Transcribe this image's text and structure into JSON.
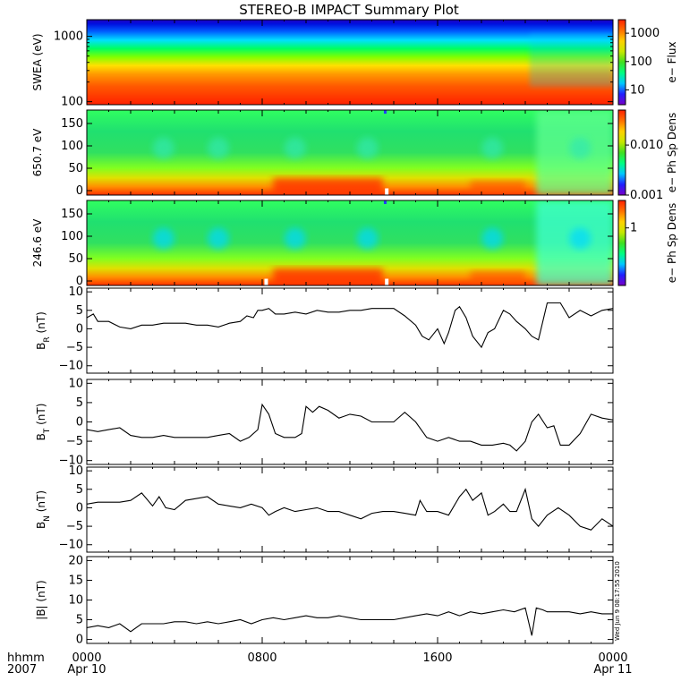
{
  "title": "STEREO-B IMPACT Summary Plot",
  "timestamp": "Wed Jun  9 08:17:55 2010",
  "x_axis": {
    "row1_label": "hhmm",
    "row2_label": "2007",
    "ticks": [
      {
        "hour": 0,
        "label": "0000",
        "sublabel": "Apr 10"
      },
      {
        "hour": 8,
        "label": "0800",
        "sublabel": ""
      },
      {
        "hour": 16,
        "label": "1600",
        "sublabel": ""
      },
      {
        "hour": 24,
        "label": "0000",
        "sublabel": "Apr 11"
      }
    ]
  },
  "colors": {
    "colormap": [
      "#7a00c8",
      "#2020ff",
      "#00c8ff",
      "#00ff80",
      "#40e020",
      "#c8e800",
      "#ffd000",
      "#ff7000",
      "#ff2000"
    ],
    "line": "#000000",
    "background": "#ffffff"
  },
  "chart_data": [
    {
      "type": "heatmap",
      "name": "swea",
      "ylabel": "SWEA (eV)",
      "yscale": "log",
      "ylim": [
        90,
        1800
      ],
      "yticks": [
        {
          "value": 100,
          "label": "100"
        },
        {
          "value": 1000,
          "label": "1000"
        }
      ],
      "colorbar": {
        "label": "e− Flux",
        "scale": "log",
        "range": [
          3,
          3000
        ],
        "ticks": [
          {
            "value": 10,
            "label": "10"
          },
          {
            "value": 100,
            "label": "100"
          },
          {
            "value": 1000,
            "label": "1000"
          }
        ]
      }
    },
    {
      "type": "heatmap",
      "name": "pad650",
      "ylabel": "650.7 eV",
      "yscale": "linear",
      "ylim": [
        -10,
        180
      ],
      "yticks": [
        {
          "value": 0,
          "label": "0"
        },
        {
          "value": 50,
          "label": "50"
        },
        {
          "value": 100,
          "label": "100"
        },
        {
          "value": 150,
          "label": "150"
        }
      ],
      "colorbar": {
        "label": "e− Ph Sp Dens",
        "scale": "log",
        "range": [
          0.001,
          0.05
        ],
        "ticks": [
          {
            "value": 0.001,
            "label": "0.001"
          },
          {
            "value": 0.01,
            "label": "0.010"
          }
        ]
      }
    },
    {
      "type": "heatmap",
      "name": "pad246",
      "ylabel": "246.6 eV",
      "yscale": "linear",
      "ylim": [
        -10,
        180
      ],
      "yticks": [
        {
          "value": 0,
          "label": "0"
        },
        {
          "value": 50,
          "label": "50"
        },
        {
          "value": 100,
          "label": "100"
        },
        {
          "value": 150,
          "label": "150"
        }
      ],
      "colorbar": {
        "label": "e− Ph Sp Dens",
        "scale": "log",
        "range": [
          0.1,
          3
        ],
        "ticks": [
          {
            "value": 1,
            "label": "1"
          }
        ]
      }
    },
    {
      "type": "line",
      "name": "BR",
      "ylabel_main": "B",
      "ylabel_sub": "R",
      "ylabel_unit": " (nT)",
      "ylim": [
        -12,
        11
      ],
      "yticks": [
        {
          "value": -10,
          "label": "−10"
        },
        {
          "value": -5,
          "label": "−5"
        },
        {
          "value": 0,
          "label": "0"
        },
        {
          "value": 5,
          "label": "5"
        },
        {
          "value": 10,
          "label": "10"
        }
      ],
      "x": [
        0,
        0.3,
        0.5,
        1,
        1.5,
        2,
        2.5,
        3,
        3.5,
        4,
        4.5,
        5,
        5.5,
        6,
        6.5,
        7,
        7.3,
        7.6,
        7.8,
        8,
        8.3,
        8.6,
        9,
        9.5,
        10,
        10.5,
        11,
        11.5,
        12,
        12.5,
        13,
        13.5,
        14,
        14.5,
        15,
        15.3,
        15.6,
        16,
        16.3,
        16.5,
        16.8,
        17,
        17.3,
        17.6,
        18,
        18.3,
        18.6,
        19,
        19.3,
        19.6,
        20,
        20.3,
        20.6,
        21,
        21.3,
        21.6,
        22,
        22.5,
        23,
        23.5,
        24
      ],
      "y": [
        3,
        4,
        2,
        2,
        0.5,
        0,
        1,
        1,
        1.5,
        1.5,
        1.5,
        1,
        1,
        0.5,
        1.5,
        2,
        3.5,
        3,
        5,
        5,
        5.5,
        4,
        4,
        4.5,
        4,
        5,
        4.5,
        4.5,
        5,
        5,
        5.5,
        5.5,
        5.5,
        3.5,
        1,
        -2,
        -3,
        0,
        -4,
        -1,
        5,
        6,
        3,
        -2,
        -5,
        -1,
        0,
        5,
        4,
        2,
        0,
        -2,
        -3,
        7,
        7,
        7,
        3,
        5,
        3.5,
        5,
        5.5
      ]
    },
    {
      "type": "line",
      "name": "BT",
      "ylabel_main": "B",
      "ylabel_sub": "T",
      "ylabel_unit": " (nT)",
      "ylim": [
        -11,
        11
      ],
      "yticks": [
        {
          "value": -10,
          "label": "−10"
        },
        {
          "value": -5,
          "label": "−5"
        },
        {
          "value": 0,
          "label": "0"
        },
        {
          "value": 5,
          "label": "5"
        },
        {
          "value": 10,
          "label": "10"
        }
      ],
      "x": [
        0,
        0.5,
        1,
        1.5,
        2,
        2.5,
        3,
        3.5,
        4,
        4.5,
        5,
        5.5,
        6,
        6.5,
        7,
        7.4,
        7.8,
        8,
        8.3,
        8.6,
        9,
        9.5,
        9.8,
        10,
        10.3,
        10.6,
        11,
        11.5,
        12,
        12.5,
        13,
        13.5,
        14,
        14.5,
        15,
        15.5,
        16,
        16.5,
        17,
        17.5,
        18,
        18.5,
        19,
        19.3,
        19.6,
        20,
        20.3,
        20.6,
        21,
        21.3,
        21.6,
        22,
        22.5,
        23,
        23.5,
        24
      ],
      "y": [
        -2,
        -2.5,
        -2,
        -1.5,
        -3.5,
        -4,
        -4,
        -3.5,
        -4,
        -4,
        -4,
        -4,
        -3.5,
        -3,
        -5,
        -4,
        -2,
        4.5,
        2,
        -3,
        -4,
        -4,
        -3,
        4,
        2.5,
        4,
        3,
        1,
        2,
        1.5,
        0,
        0,
        0,
        2.5,
        0,
        -4,
        -5,
        -4,
        -5,
        -5,
        -6,
        -6,
        -5.5,
        -6,
        -7.5,
        -5,
        0,
        2,
        -1.5,
        -1,
        -6,
        -6,
        -3,
        2,
        1,
        0.5
      ]
    },
    {
      "type": "line",
      "name": "BN",
      "ylabel_main": "B",
      "ylabel_sub": "N",
      "ylabel_unit": " (nT)",
      "ylim": [
        -12,
        11
      ],
      "yticks": [
        {
          "value": -10,
          "label": "−10"
        },
        {
          "value": -5,
          "label": "−5"
        },
        {
          "value": 0,
          "label": "0"
        },
        {
          "value": 5,
          "label": "5"
        },
        {
          "value": 10,
          "label": "10"
        }
      ],
      "x": [
        0,
        0.5,
        1,
        1.5,
        2,
        2.5,
        3,
        3.3,
        3.6,
        4,
        4.5,
        5,
        5.5,
        6,
        6.5,
        7,
        7.5,
        8,
        8.3,
        8.6,
        9,
        9.5,
        10,
        10.5,
        11,
        11.5,
        12,
        12.5,
        13,
        13.5,
        14,
        14.5,
        15,
        15.2,
        15.5,
        16,
        16.5,
        17,
        17.3,
        17.6,
        18,
        18.3,
        18.6,
        19,
        19.3,
        19.6,
        20,
        20.3,
        20.6,
        21,
        21.5,
        22,
        22.5,
        23,
        23.5,
        24
      ],
      "y": [
        1,
        1.5,
        1.5,
        1.5,
        2,
        4,
        0.5,
        3,
        0,
        -0.5,
        2,
        2.5,
        3,
        1,
        0.5,
        0,
        1,
        0,
        -2,
        -1,
        0,
        -1,
        -0.5,
        0,
        -1,
        -1,
        -2,
        -3,
        -1.5,
        -1,
        -1,
        -1.5,
        -2,
        2,
        -1,
        -1,
        -2,
        3,
        5,
        2,
        4,
        -2,
        -1,
        1,
        -1,
        -1,
        5,
        -3,
        -5,
        -2,
        0,
        -2,
        -5,
        -6,
        -3,
        -5
      ]
    },
    {
      "type": "line",
      "name": "Bmag",
      "ylabel_main": "|B|",
      "ylabel_sub": "",
      "ylabel_unit": " (nT)",
      "ylim": [
        -1,
        21
      ],
      "yticks": [
        {
          "value": 0,
          "label": "0"
        },
        {
          "value": 5,
          "label": "5"
        },
        {
          "value": 10,
          "label": "10"
        },
        {
          "value": 15,
          "label": "15"
        },
        {
          "value": 20,
          "label": "20"
        }
      ],
      "x": [
        0,
        0.5,
        1,
        1.5,
        2,
        2.5,
        3,
        3.5,
        4,
        4.5,
        5,
        5.5,
        6,
        6.5,
        7,
        7.5,
        8,
        8.5,
        9,
        9.5,
        10,
        10.5,
        11,
        11.5,
        12,
        12.5,
        13,
        13.5,
        14,
        14.5,
        15,
        15.5,
        16,
        16.5,
        17,
        17.5,
        18,
        18.5,
        19,
        19.5,
        20,
        20.3,
        20.5,
        20.8,
        21,
        21.5,
        22,
        22.5,
        23,
        23.5,
        24
      ],
      "y": [
        3,
        3.5,
        3,
        4,
        2,
        4,
        4,
        4,
        4.5,
        4.5,
        4,
        4.5,
        4,
        4.5,
        5,
        4,
        5,
        5.5,
        5,
        5.5,
        6,
        5.5,
        5.5,
        6,
        5.5,
        5,
        5,
        5,
        5,
        5.5,
        6,
        6.5,
        6,
        7,
        6,
        7,
        6.5,
        7,
        7.5,
        7,
        8,
        1,
        8,
        7.5,
        7,
        7,
        7,
        6.5,
        7,
        6.5,
        6.5
      ]
    }
  ]
}
